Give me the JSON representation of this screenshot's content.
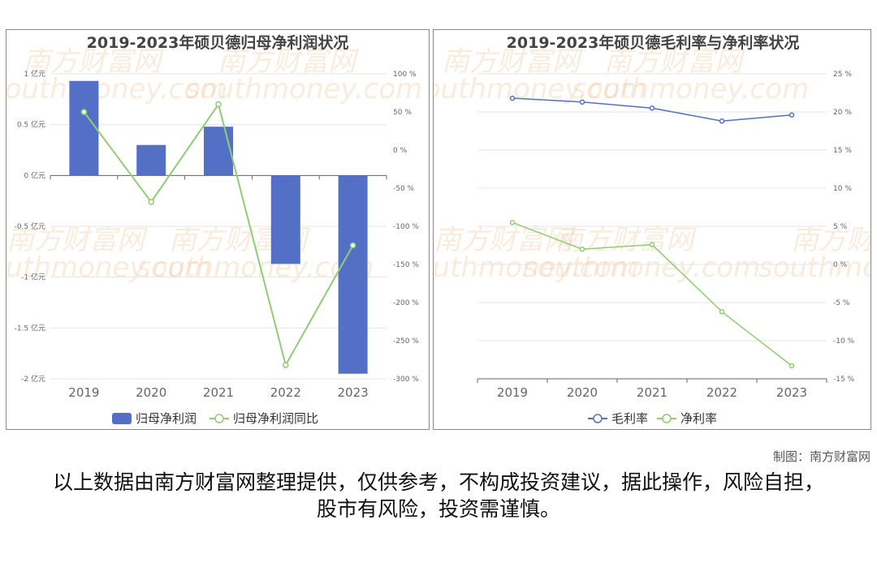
{
  "chart_data": [
    {
      "type": "bar",
      "title": "2019-2023年硕贝德归母净利润状况",
      "categories": [
        "2019",
        "2020",
        "2021",
        "2022",
        "2023"
      ],
      "series": [
        {
          "name": "归母净利润",
          "type": "bar",
          "axis": "left",
          "values": [
            0.93,
            0.3,
            0.48,
            -0.87,
            -1.95
          ],
          "color": "#5470c6"
        },
        {
          "name": "归母净利润同比",
          "type": "line",
          "axis": "right",
          "values": [
            50,
            -68,
            60,
            -282,
            -125
          ],
          "color": "#91cc75"
        }
      ],
      "y_left": {
        "ticks": [
          "1 亿元",
          "0.5 亿元",
          "0 亿元",
          "-0.5 亿元",
          "-1 亿元",
          "-1.5 亿元",
          "-2 亿元"
        ],
        "range": [
          -2,
          1
        ]
      },
      "y_right": {
        "ticks": [
          "100 %",
          "50 %",
          "0 %",
          "-50 %",
          "-100 %",
          "-150 %",
          "-200 %",
          "-250 %",
          "-300 %"
        ],
        "range": [
          -300,
          100
        ]
      },
      "legend": [
        "归母净利润",
        "归母净利润同比"
      ]
    },
    {
      "type": "line",
      "title": "2019-2023年硕贝德毛利率与净利率状况",
      "categories": [
        "2019",
        "2020",
        "2021",
        "2022",
        "2023"
      ],
      "series": [
        {
          "name": "毛利率",
          "values": [
            21.8,
            21.3,
            20.5,
            18.8,
            19.6
          ],
          "color": "#5470c6"
        },
        {
          "name": "净利率",
          "values": [
            5.5,
            2.0,
            2.6,
            -6.2,
            -13.3
          ],
          "color": "#91cc75"
        }
      ],
      "y_right": {
        "ticks": [
          "25 %",
          "20 %",
          "15 %",
          "10 %",
          "5 %",
          "0 %",
          "-5 %",
          "-10 %",
          "-15 %"
        ],
        "range": [
          -15,
          25
        ]
      },
      "legend": [
        "毛利率",
        "净利率"
      ]
    }
  ],
  "watermark": {
    "cn": "南方财富网",
    "en": "southmoney.com"
  },
  "credit": "制图：南方财富网",
  "disclaimer": "以上数据由南方财富网整理提供，仅供参考，不构成投资建议，据此操作，风险自担，股市有风险，投资需谨慎。"
}
